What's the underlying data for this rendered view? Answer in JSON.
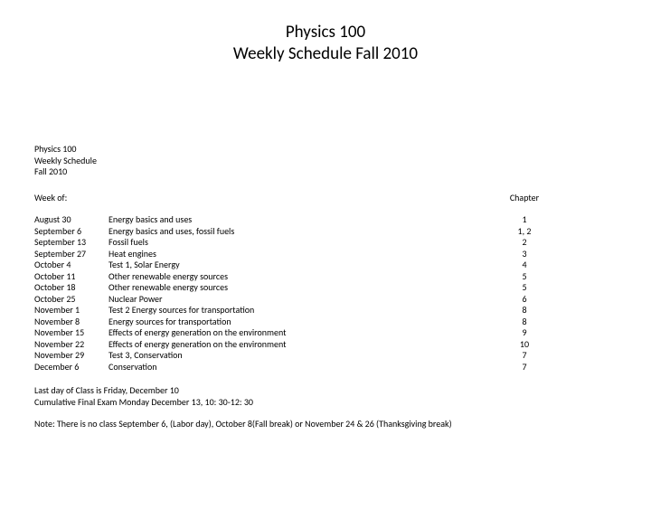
{
  "title_line1": "Physics 100",
  "title_line2": "Weekly Schedule Fall 2010",
  "sub_line1": "Physics 100",
  "sub_line2": "Weekly Schedule",
  "sub_line3": "Fall 2010",
  "hdr_week": "Week of:",
  "hdr_chapter": "Chapter",
  "rows": [
    {
      "week": "August 30",
      "topic": "Energy basics and uses",
      "chapter": "1"
    },
    {
      "week": "September 6",
      "topic": "Energy basics and uses, fossil fuels",
      "chapter": "1, 2"
    },
    {
      "week": "September 13",
      "topic": "Fossil fuels",
      "chapter": "2"
    },
    {
      "week": "September 27",
      "topic": "Heat engines",
      "chapter": "3"
    },
    {
      "week": "October 4",
      "topic": "Test 1, Solar Energy",
      "chapter": "4"
    },
    {
      "week": "October 11",
      "topic": "Other renewable energy sources",
      "chapter": "5"
    },
    {
      "week": "October 18",
      "topic": "Other renewable energy sources",
      "chapter": "5"
    },
    {
      "week": "October 25",
      "topic": "Nuclear Power",
      "chapter": "6"
    },
    {
      "week": "November 1",
      "topic": "Test 2 Energy sources for transportation",
      "chapter": "8"
    },
    {
      "week": "November 8",
      "topic": "Energy sources for transportation",
      "chapter": "8"
    },
    {
      "week": "November 15",
      "topic": "Effects of energy generation on the environment",
      "chapter": "9"
    },
    {
      "week": "November 22",
      "topic": "Effects of energy generation on the environment",
      "chapter": "10"
    },
    {
      "week": "November 29",
      "topic": "Test 3, Conservation",
      "chapter": "7"
    },
    {
      "week": "December 6",
      "topic": "Conservation",
      "chapter": "7"
    }
  ],
  "note1": "Last day of Class is Friday, December 10",
  "note2": "Cumulative Final Exam Monday December 13, 10: 30-12: 30",
  "note3": "Note: There is no class September 6, (Labor day), October 8(Fall break) or November 24 & 26 (Thanksgiving break)"
}
